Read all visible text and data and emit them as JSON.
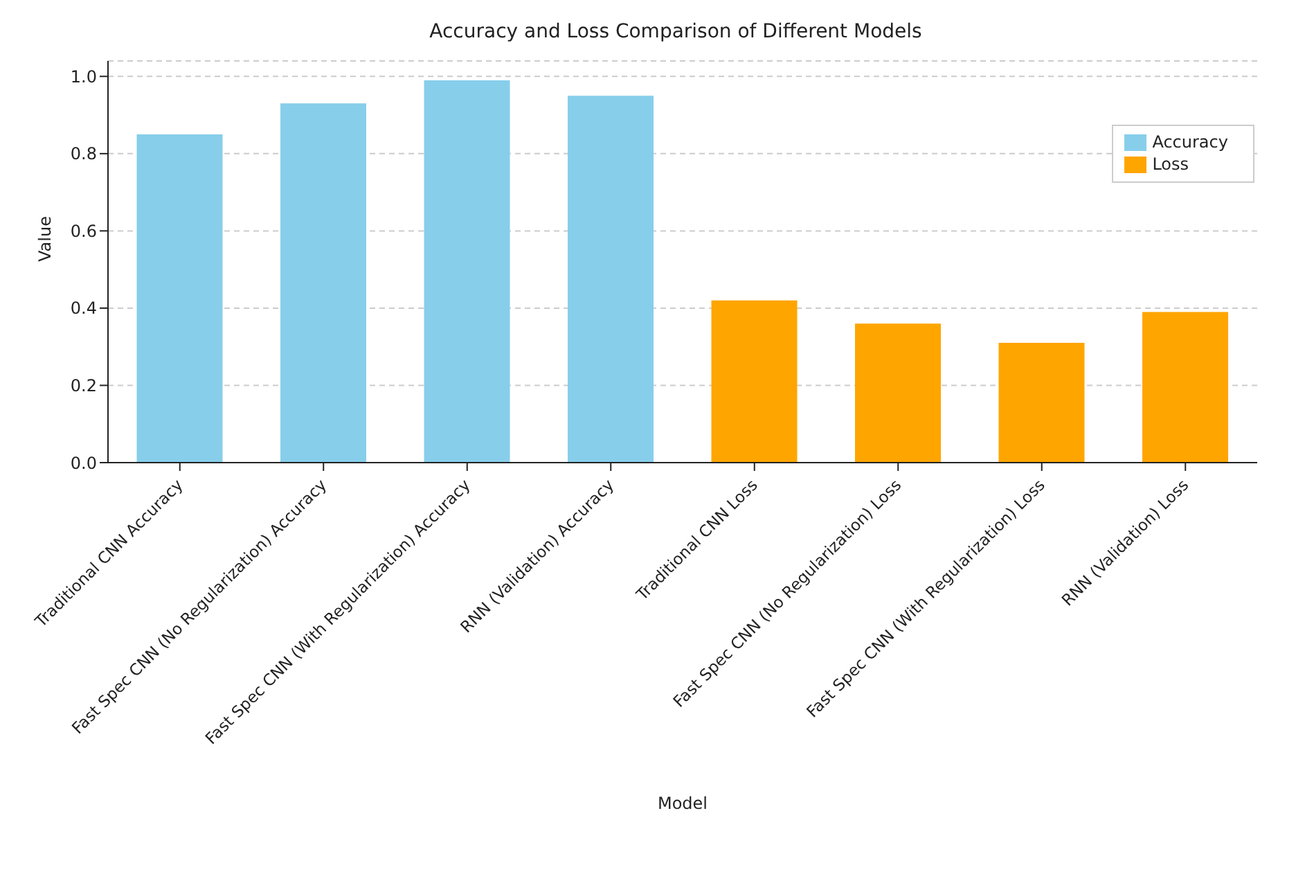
{
  "chart_data": {
    "type": "bar",
    "title": "Accuracy and Loss Comparison of Different Models",
    "xlabel": "Model",
    "ylabel": "Value",
    "categories": [
      "Traditional CNN Accuracy",
      "Fast Spec CNN (No Regularization) Accuracy",
      "Fast Spec CNN (With Regularization) Accuracy",
      "RNN (Validation) Accuracy",
      "Traditional CNN Loss",
      "Fast Spec CNN (No Regularization) Loss",
      "Fast Spec CNN (With Regularization) Loss",
      "RNN (Validation) Loss"
    ],
    "series": [
      {
        "name": "Accuracy",
        "color": "#87ceeb",
        "values": [
          0.85,
          0.93,
          0.99,
          0.95,
          null,
          null,
          null,
          null
        ]
      },
      {
        "name": "Loss",
        "color": "#ffa500",
        "values": [
          null,
          null,
          null,
          null,
          0.42,
          0.36,
          0.31,
          0.39
        ]
      }
    ],
    "ylim": [
      0,
      1.04
    ],
    "yticks": [
      {
        "value": 0,
        "label": "0.0"
      },
      0.2,
      0.4,
      0.6,
      0.8,
      {
        "value": 1,
        "label": "1.0"
      }
    ],
    "grid": "y",
    "legend": "top right"
  }
}
